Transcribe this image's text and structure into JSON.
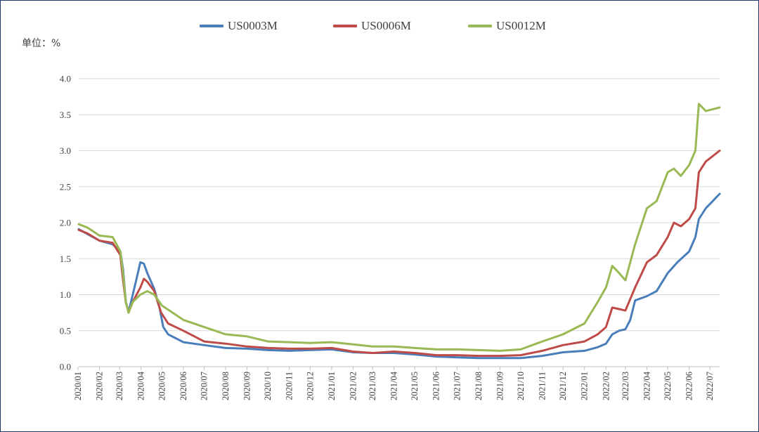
{
  "unit_label": "单位：%",
  "legend": [
    {
      "name": "US0003M",
      "color": "#4a7ebb"
    },
    {
      "name": "US0006M",
      "color": "#be4b48"
    },
    {
      "name": "US0012M",
      "color": "#98b954"
    }
  ],
  "chart_data": {
    "type": "line",
    "x_start": "2020/01/02",
    "x_end": "2022/07/15",
    "ylim": [
      0,
      4.0
    ],
    "yticks": [
      "0.0",
      "0.5",
      "1.0",
      "1.5",
      "2.0",
      "2.5",
      "3.0",
      "3.5",
      "4.0"
    ],
    "xticks": [
      "2020/01",
      "2020/02",
      "2020/03",
      "2020/04",
      "2020/05",
      "2020/06",
      "2020/07",
      "2020/08",
      "2020/09",
      "2020/10",
      "2020/11",
      "2020/12",
      "2021/01",
      "2021/02",
      "2021/03",
      "2021/04",
      "2021/05",
      "2021/06",
      "2021/07",
      "2021/08",
      "2021/09",
      "2021/10",
      "2021/11",
      "2021/12",
      "2022/01",
      "2022/02",
      "2022/03",
      "2022/04",
      "2022/05",
      "2022/06",
      "2022/07"
    ],
    "grid": true,
    "legend_position": "top",
    "series": [
      {
        "name": "US0003M",
        "color": "#4a7ebb",
        "points": [
          [
            "2020/01/02",
            1.91
          ],
          [
            "2020/01/15",
            1.84
          ],
          [
            "2020/02/01",
            1.75
          ],
          [
            "2020/02/20",
            1.7
          ],
          [
            "2020/03/02",
            1.6
          ],
          [
            "2020/03/06",
            1.35
          ],
          [
            "2020/03/10",
            0.9
          ],
          [
            "2020/03/14",
            0.76
          ],
          [
            "2020/03/20",
            1.0
          ],
          [
            "2020/03/25",
            1.2
          ],
          [
            "2020/03/31",
            1.45
          ],
          [
            "2020/04/05",
            1.43
          ],
          [
            "2020/04/10",
            1.3
          ],
          [
            "2020/04/20",
            1.08
          ],
          [
            "2020/04/28",
            0.8
          ],
          [
            "2020/05/03",
            0.55
          ],
          [
            "2020/05/10",
            0.45
          ],
          [
            "2020/05/20",
            0.4
          ],
          [
            "2020/06/01",
            0.34
          ],
          [
            "2020/07/01",
            0.3
          ],
          [
            "2020/08/01",
            0.26
          ],
          [
            "2020/09/01",
            0.25
          ],
          [
            "2020/10/01",
            0.23
          ],
          [
            "2020/11/01",
            0.22
          ],
          [
            "2020/12/01",
            0.23
          ],
          [
            "2021/01/01",
            0.24
          ],
          [
            "2021/02/01",
            0.2
          ],
          [
            "2021/03/01",
            0.19
          ],
          [
            "2021/04/01",
            0.19
          ],
          [
            "2021/05/01",
            0.17
          ],
          [
            "2021/06/01",
            0.14
          ],
          [
            "2021/07/01",
            0.13
          ],
          [
            "2021/08/01",
            0.12
          ],
          [
            "2021/09/01",
            0.12
          ],
          [
            "2021/10/01",
            0.12
          ],
          [
            "2021/11/01",
            0.15
          ],
          [
            "2021/12/01",
            0.2
          ],
          [
            "2022/01/01",
            0.22
          ],
          [
            "2022/01/20",
            0.27
          ],
          [
            "2022/02/01",
            0.32
          ],
          [
            "2022/02/10",
            0.45
          ],
          [
            "2022/02/20",
            0.5
          ],
          [
            "2022/03/01",
            0.52
          ],
          [
            "2022/03/08",
            0.65
          ],
          [
            "2022/03/15",
            0.92
          ],
          [
            "2022/04/01",
            0.98
          ],
          [
            "2022/04/15",
            1.05
          ],
          [
            "2022/05/01",
            1.3
          ],
          [
            "2022/05/15",
            1.45
          ],
          [
            "2022/06/01",
            1.6
          ],
          [
            "2022/06/10",
            1.8
          ],
          [
            "2022/06/15",
            2.05
          ],
          [
            "2022/06/25",
            2.2
          ],
          [
            "2022/07/15",
            2.4
          ]
        ]
      },
      {
        "name": "US0006M",
        "color": "#be4b48",
        "points": [
          [
            "2020/01/02",
            1.9
          ],
          [
            "2020/01/15",
            1.85
          ],
          [
            "2020/02/01",
            1.75
          ],
          [
            "2020/02/20",
            1.72
          ],
          [
            "2020/03/02",
            1.55
          ],
          [
            "2020/03/06",
            1.2
          ],
          [
            "2020/03/10",
            0.9
          ],
          [
            "2020/03/14",
            0.75
          ],
          [
            "2020/03/20",
            0.9
          ],
          [
            "2020/03/31",
            1.1
          ],
          [
            "2020/04/05",
            1.22
          ],
          [
            "2020/04/10",
            1.18
          ],
          [
            "2020/04/20",
            1.05
          ],
          [
            "2020/04/30",
            0.75
          ],
          [
            "2020/05/10",
            0.6
          ],
          [
            "2020/06/01",
            0.5
          ],
          [
            "2020/07/01",
            0.35
          ],
          [
            "2020/08/01",
            0.32
          ],
          [
            "2020/09/01",
            0.28
          ],
          [
            "2020/10/01",
            0.26
          ],
          [
            "2020/11/01",
            0.25
          ],
          [
            "2020/12/01",
            0.25
          ],
          [
            "2021/01/01",
            0.26
          ],
          [
            "2021/02/01",
            0.21
          ],
          [
            "2021/03/01",
            0.19
          ],
          [
            "2021/04/01",
            0.21
          ],
          [
            "2021/05/01",
            0.19
          ],
          [
            "2021/06/01",
            0.16
          ],
          [
            "2021/07/01",
            0.16
          ],
          [
            "2021/08/01",
            0.15
          ],
          [
            "2021/09/01",
            0.15
          ],
          [
            "2021/10/01",
            0.16
          ],
          [
            "2021/11/01",
            0.22
          ],
          [
            "2021/12/01",
            0.3
          ],
          [
            "2022/01/01",
            0.35
          ],
          [
            "2022/01/20",
            0.45
          ],
          [
            "2022/02/01",
            0.55
          ],
          [
            "2022/02/10",
            0.82
          ],
          [
            "2022/02/20",
            0.8
          ],
          [
            "2022/03/01",
            0.78
          ],
          [
            "2022/03/15",
            1.1
          ],
          [
            "2022/04/01",
            1.45
          ],
          [
            "2022/04/15",
            1.55
          ],
          [
            "2022/05/01",
            1.8
          ],
          [
            "2022/05/10",
            2.0
          ],
          [
            "2022/05/20",
            1.95
          ],
          [
            "2022/06/01",
            2.05
          ],
          [
            "2022/06/10",
            2.2
          ],
          [
            "2022/06/15",
            2.7
          ],
          [
            "2022/06/25",
            2.85
          ],
          [
            "2022/07/15",
            3.0
          ]
        ]
      },
      {
        "name": "US0012M",
        "color": "#98b954",
        "points": [
          [
            "2020/01/02",
            1.98
          ],
          [
            "2020/01/15",
            1.93
          ],
          [
            "2020/02/01",
            1.82
          ],
          [
            "2020/02/20",
            1.8
          ],
          [
            "2020/03/02",
            1.6
          ],
          [
            "2020/03/06",
            1.3
          ],
          [
            "2020/03/10",
            0.9
          ],
          [
            "2020/03/14",
            0.75
          ],
          [
            "2020/03/20",
            0.9
          ],
          [
            "2020/03/31",
            1.0
          ],
          [
            "2020/04/10",
            1.05
          ],
          [
            "2020/04/20",
            1.0
          ],
          [
            "2020/05/01",
            0.85
          ],
          [
            "2020/06/01",
            0.65
          ],
          [
            "2020/07/01",
            0.55
          ],
          [
            "2020/08/01",
            0.45
          ],
          [
            "2020/09/01",
            0.42
          ],
          [
            "2020/10/01",
            0.35
          ],
          [
            "2020/11/01",
            0.34
          ],
          [
            "2020/12/01",
            0.33
          ],
          [
            "2021/01/01",
            0.34
          ],
          [
            "2021/02/01",
            0.31
          ],
          [
            "2021/03/01",
            0.28
          ],
          [
            "2021/04/01",
            0.28
          ],
          [
            "2021/05/01",
            0.26
          ],
          [
            "2021/06/01",
            0.24
          ],
          [
            "2021/07/01",
            0.24
          ],
          [
            "2021/08/01",
            0.23
          ],
          [
            "2021/09/01",
            0.22
          ],
          [
            "2021/10/01",
            0.24
          ],
          [
            "2021/11/01",
            0.35
          ],
          [
            "2021/12/01",
            0.45
          ],
          [
            "2022/01/01",
            0.6
          ],
          [
            "2022/01/20",
            0.9
          ],
          [
            "2022/02/01",
            1.1
          ],
          [
            "2022/02/10",
            1.4
          ],
          [
            "2022/02/20",
            1.3
          ],
          [
            "2022/03/01",
            1.2
          ],
          [
            "2022/03/15",
            1.7
          ],
          [
            "2022/04/01",
            2.2
          ],
          [
            "2022/04/15",
            2.3
          ],
          [
            "2022/05/01",
            2.7
          ],
          [
            "2022/05/10",
            2.75
          ],
          [
            "2022/05/20",
            2.65
          ],
          [
            "2022/06/01",
            2.8
          ],
          [
            "2022/06/10",
            3.0
          ],
          [
            "2022/06/15",
            3.65
          ],
          [
            "2022/06/25",
            3.55
          ],
          [
            "2022/07/15",
            3.6
          ]
        ]
      }
    ]
  }
}
